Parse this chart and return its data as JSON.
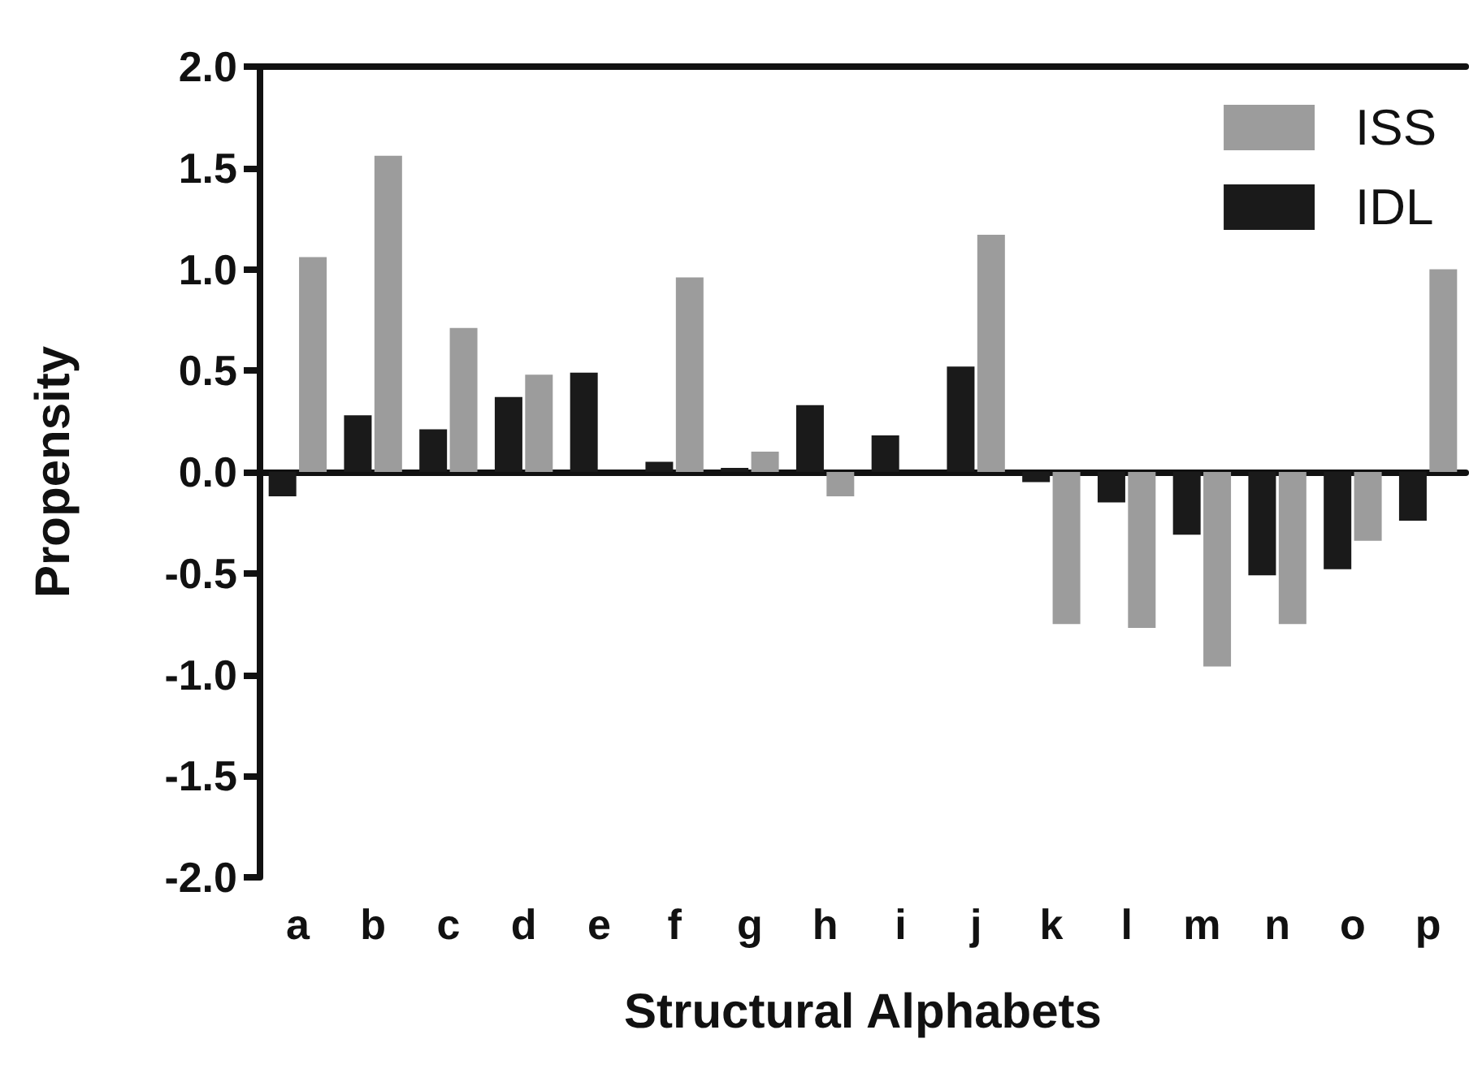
{
  "chart_data": {
    "type": "bar",
    "xlabel": "Structural Alphabets",
    "ylabel": "Propensity",
    "categories": [
      "a",
      "b",
      "c",
      "d",
      "e",
      "f",
      "g",
      "h",
      "i",
      "j",
      "k",
      "l",
      "m",
      "n",
      "o",
      "p"
    ],
    "series": [
      {
        "name": "IDL",
        "color": "#1a1a1a",
        "values": [
          -0.12,
          0.28,
          0.21,
          0.37,
          0.49,
          0.05,
          0.02,
          0.33,
          0.18,
          0.52,
          -0.05,
          -0.15,
          -0.31,
          -0.51,
          -0.48,
          -0.24
        ]
      },
      {
        "name": "ISS",
        "color": "#9c9c9c",
        "values": [
          1.06,
          1.56,
          0.71,
          0.48,
          0,
          0.96,
          0.1,
          -0.12,
          0,
          1.17,
          -0.75,
          -0.77,
          -0.96,
          -0.75,
          -0.34,
          1.0
        ]
      }
    ],
    "ylim": [
      -2.0,
      2.0
    ],
    "yticks": [
      {
        "value": -2,
        "label": "-2.0"
      },
      {
        "value": -1.5,
        "label": "-1.5"
      },
      {
        "value": -1,
        "label": "-1.0"
      },
      {
        "value": -0.5,
        "label": "-0.5"
      },
      {
        "value": 0,
        "label": "0.0"
      },
      {
        "value": 0.5,
        "label": "0.5"
      },
      {
        "value": 1,
        "label": "1.0"
      },
      {
        "value": 1.5,
        "label": "1.5"
      },
      {
        "value": 2,
        "label": "2.0"
      }
    ],
    "legend": "top right"
  }
}
